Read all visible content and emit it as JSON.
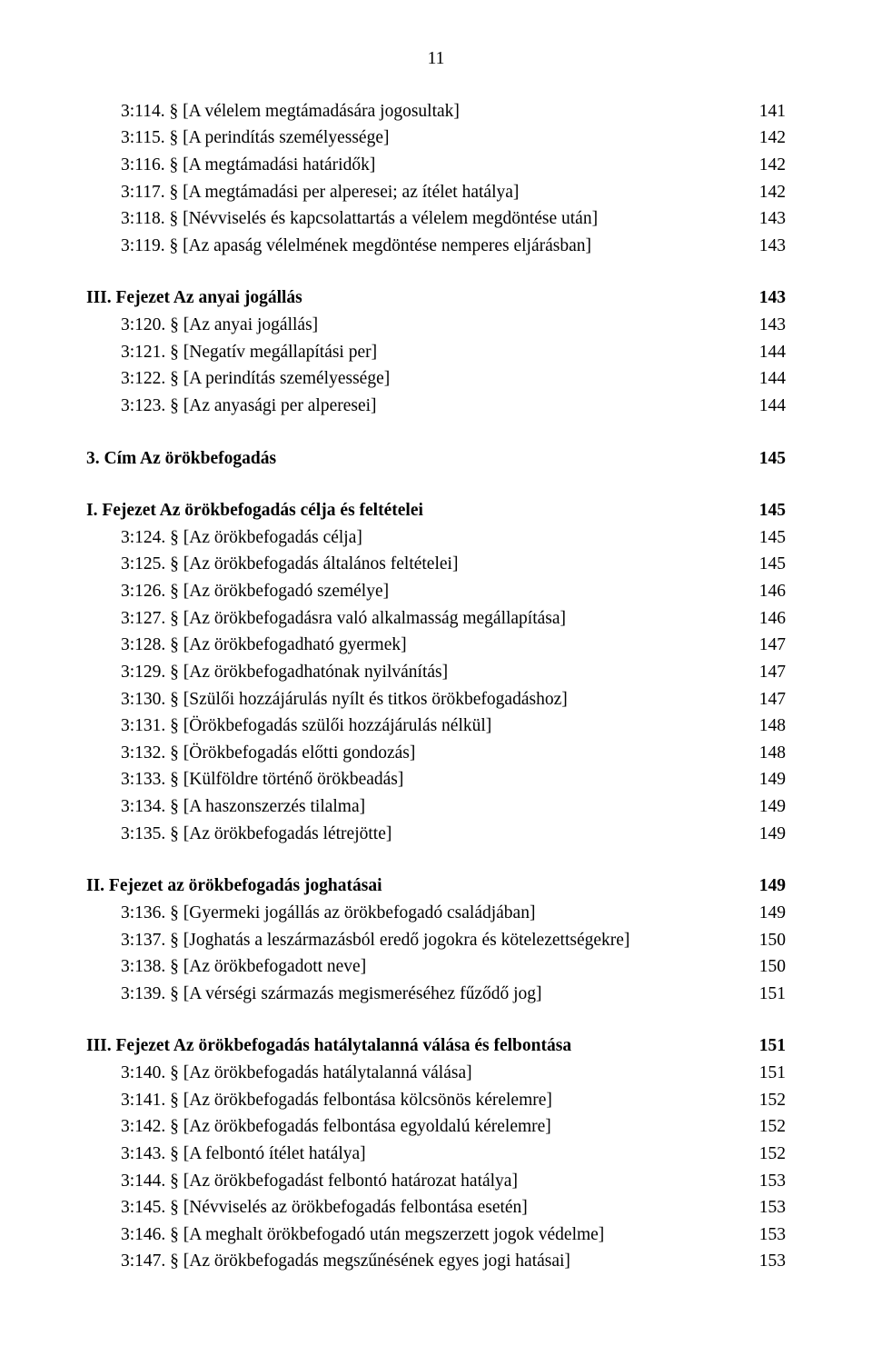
{
  "page_number": "11",
  "blocks": [
    {
      "gap": false,
      "heading": null,
      "items": [
        {
          "label": "3:114. § [A vélelem megtámadására jogosultak]",
          "page": "141"
        },
        {
          "label": "3:115. § [A perindítás személyessége]",
          "page": "142"
        },
        {
          "label": "3:116. § [A megtámadási határidők]",
          "page": "142"
        },
        {
          "label": "3:117. § [A megtámadási per alperesei; az ítélet hatálya]",
          "page": "142"
        },
        {
          "label": "3:118. § [Névviselés és kapcsolattartás a vélelem megdöntése után]",
          "page": "143"
        },
        {
          "label": "3:119. § [Az apaság vélelmének megdöntése nemperes eljárásban]",
          "page": "143"
        }
      ]
    },
    {
      "gap": true,
      "heading": {
        "label": "III. Fejezet Az anyai jogállás",
        "page": "143"
      },
      "items": [
        {
          "label": "3:120. § [Az anyai jogállás]",
          "page": "143"
        },
        {
          "label": "3:121. § [Negatív megállapítási per]",
          "page": "144"
        },
        {
          "label": "3:122. § [A perindítás személyessége]",
          "page": "144"
        },
        {
          "label": "3:123. § [Az anyasági per alperesei]",
          "page": "144"
        }
      ]
    },
    {
      "gap": true,
      "heading": {
        "label": "3. Cím Az örökbefogadás",
        "page": "145"
      },
      "items": []
    },
    {
      "gap": true,
      "heading": {
        "label": "I. Fejezet Az örökbefogadás célja és feltételei",
        "page": "145"
      },
      "items": [
        {
          "label": "3:124. § [Az örökbefogadás célja]",
          "page": "145"
        },
        {
          "label": "3:125. § [Az örökbefogadás általános feltételei]",
          "page": "145"
        },
        {
          "label": "3:126. § [Az örökbefogadó személye]",
          "page": "146"
        },
        {
          "label": "3:127. § [Az örökbefogadásra való alkalmasság megállapítása]",
          "page": "146"
        },
        {
          "label": "3:128. § [Az örökbefogadható gyermek]",
          "page": "147"
        },
        {
          "label": "3:129. § [Az örökbefogadhatónak nyilvánítás]",
          "page": "147"
        },
        {
          "label": "3:130. § [Szülői hozzájárulás nyílt és titkos örökbefogadáshoz]",
          "page": "147"
        },
        {
          "label": "3:131. § [Örökbefogadás szülői hozzájárulás nélkül]",
          "page": "148"
        },
        {
          "label": "3:132. § [Örökbefogadás előtti gondozás]",
          "page": "148"
        },
        {
          "label": "3:133. § [Külföldre történő örökbeadás]",
          "page": "149"
        },
        {
          "label": "3:134. § [A haszonszerzés tilalma]",
          "page": "149"
        },
        {
          "label": "3:135. § [Az örökbefogadás létrejötte]",
          "page": "149"
        }
      ]
    },
    {
      "gap": true,
      "heading": {
        "label": "II. Fejezet az örökbefogadás joghatásai",
        "page": "149"
      },
      "items": [
        {
          "label": "3:136. § [Gyermeki jogállás az örökbefogadó családjában]",
          "page": "149"
        },
        {
          "label": "3:137. § [Joghatás a leszármazásból eredő jogokra és kötelezettségekre]",
          "page": "150"
        },
        {
          "label": "3:138. § [Az örökbefogadott neve]",
          "page": "150"
        },
        {
          "label": "3:139. § [A vérségi származás megismeréséhez fűződő jog]",
          "page": "151"
        }
      ]
    },
    {
      "gap": true,
      "heading": {
        "label": "III. Fejezet Az örökbefogadás hatálytalanná válása és felbontása",
        "page": "151"
      },
      "items": [
        {
          "label": "3:140. § [Az örökbefogadás hatálytalanná válása]",
          "page": "151"
        },
        {
          "label": "3:141. § [Az örökbefogadás felbontása kölcsönös kérelemre]",
          "page": "152"
        },
        {
          "label": "3:142. § [Az örökbefogadás felbontása egyoldalú kérelemre]",
          "page": "152"
        },
        {
          "label": "3:143. § [A felbontó ítélet hatálya]",
          "page": "152"
        },
        {
          "label": "3:144. § [Az örökbefogadást felbontó határozat hatálya]",
          "page": "153"
        },
        {
          "label": "3:145. § [Névviselés az örökbefogadás felbontása esetén]",
          "page": "153"
        },
        {
          "label": "3:146. § [A meghalt örökbefogadó után megszerzett jogok védelme]",
          "page": "153"
        },
        {
          "label": "3:147. § [Az örökbefogadás megszűnésének egyes jogi hatásai]",
          "page": "153"
        }
      ]
    }
  ]
}
